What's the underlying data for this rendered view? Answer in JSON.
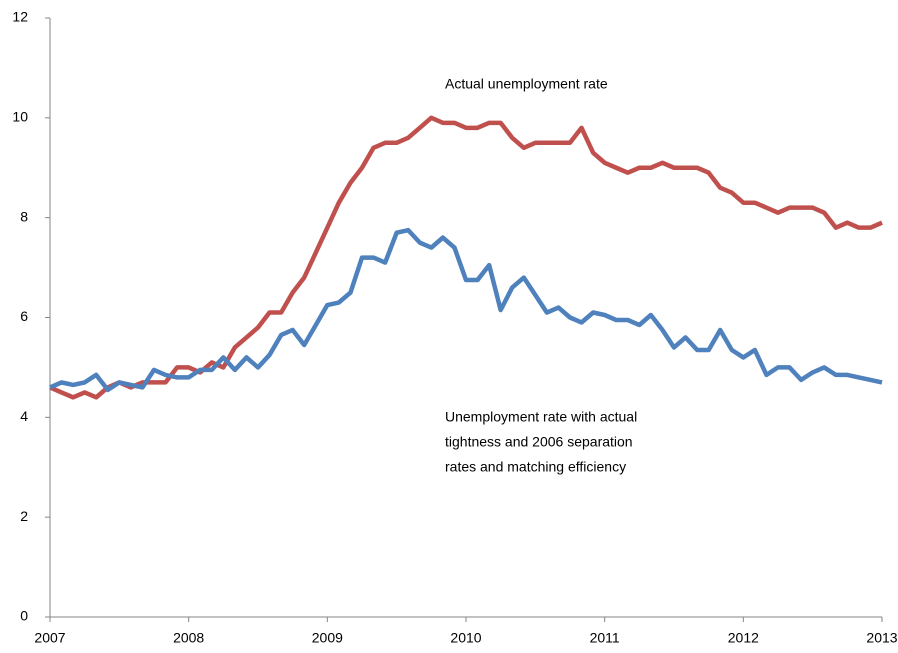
{
  "chart_data": {
    "type": "line",
    "x": [
      2007,
      2007.083,
      2007.167,
      2007.25,
      2007.333,
      2007.417,
      2007.5,
      2007.583,
      2007.667,
      2007.75,
      2007.833,
      2007.917,
      2008,
      2008.083,
      2008.167,
      2008.25,
      2008.333,
      2008.417,
      2008.5,
      2008.583,
      2008.667,
      2008.75,
      2008.833,
      2008.917,
      2009,
      2009.083,
      2009.167,
      2009.25,
      2009.333,
      2009.417,
      2009.5,
      2009.583,
      2009.667,
      2009.75,
      2009.833,
      2009.917,
      2010,
      2010.083,
      2010.167,
      2010.25,
      2010.333,
      2010.417,
      2010.5,
      2010.583,
      2010.667,
      2010.75,
      2010.833,
      2010.917,
      2011,
      2011.083,
      2011.167,
      2011.25,
      2011.333,
      2011.417,
      2011.5,
      2011.583,
      2011.667,
      2011.75,
      2011.833,
      2011.917,
      2012,
      2012.083,
      2012.167,
      2012.25,
      2012.333,
      2012.417,
      2012.5,
      2012.583,
      2012.667,
      2012.75,
      2012.833,
      2012.917,
      2013
    ],
    "series": [
      {
        "name": "Actual unemployment rate",
        "color": "#c0504d",
        "values": [
          4.6,
          4.5,
          4.4,
          4.5,
          4.4,
          4.6,
          4.7,
          4.6,
          4.7,
          4.7,
          4.7,
          5.0,
          5.0,
          4.9,
          5.1,
          5.0,
          5.4,
          5.6,
          5.8,
          6.1,
          6.1,
          6.5,
          6.8,
          7.3,
          7.8,
          8.3,
          8.7,
          9.0,
          9.4,
          9.5,
          9.5,
          9.6,
          9.8,
          10.0,
          9.9,
          9.9,
          9.8,
          9.8,
          9.9,
          9.9,
          9.6,
          9.4,
          9.5,
          9.5,
          9.5,
          9.5,
          9.8,
          9.3,
          9.1,
          9.0,
          8.9,
          9.0,
          9.0,
          9.1,
          9.0,
          9.0,
          9.0,
          8.9,
          8.6,
          8.5,
          8.3,
          8.3,
          8.2,
          8.1,
          8.2,
          8.2,
          8.2,
          8.1,
          7.8,
          7.9,
          7.8,
          7.8,
          7.9
        ]
      },
      {
        "name": "Unemployment rate with actual tightness and 2006 separation rates and matching efficiency",
        "color": "#4f81bd",
        "values": [
          4.6,
          4.7,
          4.65,
          4.7,
          4.85,
          4.55,
          4.7,
          4.65,
          4.6,
          4.95,
          4.85,
          4.8,
          4.8,
          4.95,
          4.95,
          5.2,
          4.95,
          5.2,
          5.0,
          5.25,
          5.65,
          5.75,
          5.45,
          5.85,
          6.25,
          6.3,
          6.5,
          7.2,
          7.2,
          7.1,
          7.7,
          7.75,
          7.5,
          7.4,
          7.6,
          7.4,
          6.75,
          6.75,
          7.05,
          6.15,
          6.6,
          6.8,
          6.45,
          6.1,
          6.2,
          6.0,
          5.9,
          6.1,
          6.05,
          5.95,
          5.95,
          5.85,
          6.05,
          5.75,
          5.4,
          5.6,
          5.35,
          5.35,
          5.75,
          5.35,
          5.2,
          5.35,
          4.85,
          5.0,
          5.0,
          4.75,
          4.9,
          5.0,
          4.85,
          4.85,
          4.8,
          4.75,
          4.7
        ]
      }
    ],
    "annotations": [
      {
        "lines": [
          "Actual unemployment rate"
        ]
      },
      {
        "lines": [
          "Unemployment rate with actual",
          "tightness and 2006 separation",
          "rates and matching efficiency"
        ]
      }
    ],
    "xlim": [
      2007,
      2013
    ],
    "xticks": [
      2007,
      2008,
      2009,
      2010,
      2011,
      2012,
      2013
    ],
    "ylim": [
      0,
      12
    ],
    "yticks": [
      0,
      2,
      4,
      6,
      8,
      10,
      12
    ],
    "grid": false
  }
}
